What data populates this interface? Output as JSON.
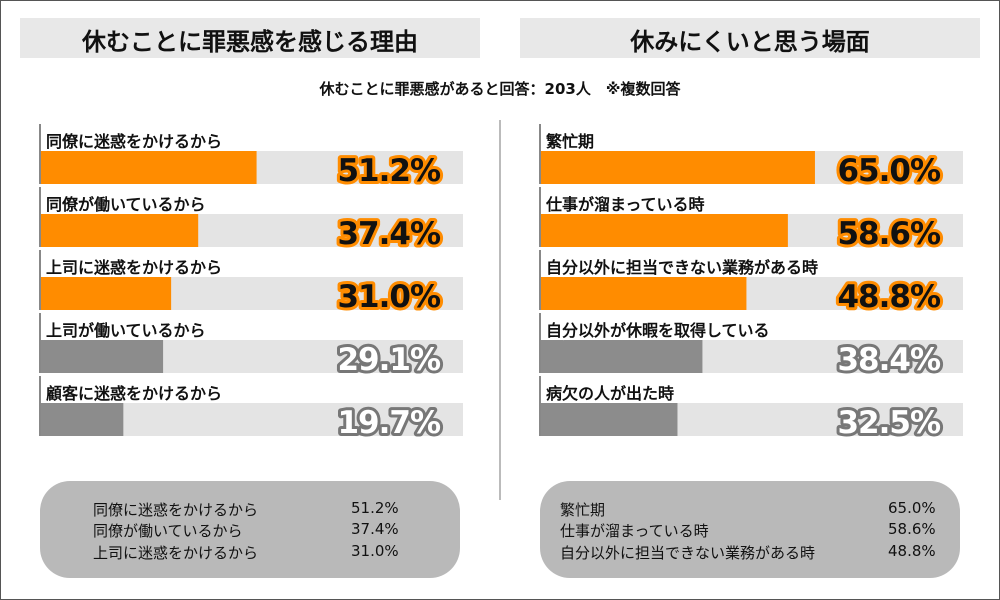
{
  "left_panel": {
    "title": "休むことに罪悪感を感じる理由",
    "summary": [
      {
        "label": "同僚に迷惑をかけるから",
        "value": "51.2%"
      },
      {
        "label": "同僚が働いているから",
        "value": "37.4%"
      },
      {
        "label": "上司に迷惑をかけるから",
        "value": "31.0%"
      }
    ]
  },
  "right_panel": {
    "title": "休みにくいと思う場面",
    "summary": [
      {
        "label": "繁忙期",
        "value": "65.0%"
      },
      {
        "label": "仕事が溜まっている時",
        "value": "58.6%"
      },
      {
        "label": "自分以外に担当できない業務がある時",
        "value": "48.8%"
      }
    ]
  },
  "subtitle": "休むことに罪悪感があると回答：203人　※複数回答",
  "colors": {
    "highlight": "#ff8c00",
    "muted": "#8c8c8c",
    "track": "#e4e4e4",
    "panel_bg": "#e8e8e8",
    "summary_bg": "#b9b9b9"
  },
  "chart_data": [
    {
      "type": "bar",
      "title": "休むことに罪悪感を感じる理由",
      "categories": [
        "同僚に迷惑をかけるから",
        "同僚が働いているから",
        "上司に迷惑をかけるから",
        "上司が働いているから",
        "顧客に迷惑をかけるから"
      ],
      "values": [
        51.2,
        37.4,
        31.0,
        29.1,
        19.7
      ],
      "labels": [
        "51.2%",
        "37.4%",
        "31.0%",
        "29.1%",
        "19.7%"
      ],
      "highlighted": [
        true,
        true,
        true,
        false,
        false
      ],
      "xlim": [
        0,
        100
      ]
    },
    {
      "type": "bar",
      "title": "休みにくいと思う場面",
      "categories": [
        "繁忙期",
        "仕事が溜まっている時",
        "自分以外に担当できない業務がある時",
        "自分以外が休暇を取得している",
        "病欠の人が出た時"
      ],
      "values": [
        65.0,
        58.6,
        48.8,
        38.4,
        32.5
      ],
      "labels": [
        "65.0%",
        "58.6%",
        "48.8%",
        "38.4%",
        "32.5%"
      ],
      "highlighted": [
        true,
        true,
        true,
        false,
        false
      ],
      "xlim": [
        0,
        100
      ]
    }
  ]
}
